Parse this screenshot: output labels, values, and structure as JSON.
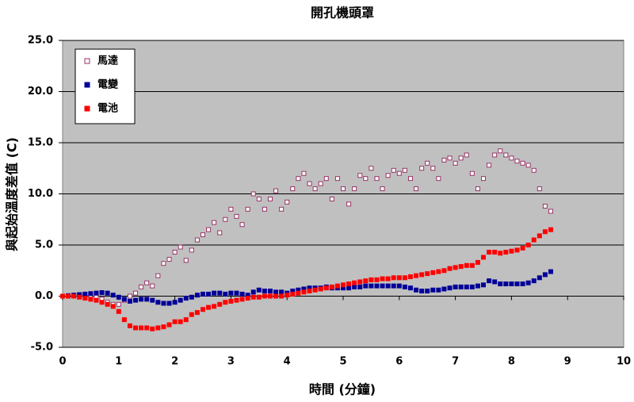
{
  "chart_data": {
    "type": "scatter",
    "title": "開孔機頭罩",
    "x_label": "時間 (分鐘)",
    "y_label": "與起始溫度差值 (C)",
    "xlim": [
      0,
      10
    ],
    "xticks": [
      0,
      1,
      2,
      3,
      4,
      5,
      6,
      7,
      8,
      9,
      10
    ],
    "ylim": [
      -5,
      25
    ],
    "yticks": [
      {
        "value": -5,
        "label": "-5.0"
      },
      {
        "value": 0,
        "label": "0.0"
      },
      {
        "value": 5,
        "label": "5.0"
      },
      {
        "value": 10,
        "label": "10.0"
      },
      {
        "value": 15,
        "label": "15.0"
      },
      {
        "value": 20,
        "label": "20.0"
      },
      {
        "value": 25,
        "label": "25.0"
      }
    ],
    "grid": true,
    "legend": "upper left",
    "x": [
      0,
      0.1,
      0.2,
      0.3,
      0.4,
      0.5,
      0.6,
      0.7,
      0.8,
      0.9,
      1.0,
      1.1,
      1.2,
      1.3,
      1.4,
      1.5,
      1.6,
      1.7,
      1.8,
      1.9,
      2.0,
      2.1,
      2.2,
      2.3,
      2.4,
      2.5,
      2.6,
      2.7,
      2.8,
      2.9,
      3.0,
      3.1,
      3.2,
      3.3,
      3.4,
      3.5,
      3.6,
      3.7,
      3.8,
      3.9,
      4.0,
      4.1,
      4.2,
      4.3,
      4.4,
      4.5,
      4.6,
      4.7,
      4.8,
      4.9,
      5.0,
      5.1,
      5.2,
      5.3,
      5.4,
      5.5,
      5.6,
      5.7,
      5.8,
      5.9,
      6.0,
      6.1,
      6.2,
      6.3,
      6.4,
      6.5,
      6.6,
      6.7,
      6.8,
      6.9,
      7.0,
      7.1,
      7.2,
      7.3,
      7.4,
      7.5,
      7.6,
      7.7,
      7.8,
      7.9,
      8.0,
      8.1,
      8.2,
      8.3,
      8.4,
      8.5,
      8.6,
      8.7
    ],
    "series": [
      {
        "name": "馬達",
        "color": "#993366",
        "marker": "hollow",
        "values": [
          0,
          0,
          0,
          0,
          0,
          0,
          -0.1,
          -0.3,
          -0.6,
          -0.8,
          -0.8,
          -0.4,
          0,
          0.3,
          0.9,
          1.3,
          1.0,
          2.0,
          3.2,
          3.6,
          4.3,
          4.8,
          3.5,
          4.5,
          5.5,
          6.0,
          6.5,
          7.2,
          6.2,
          7.5,
          8.5,
          7.8,
          7.0,
          8.5,
          10.0,
          9.5,
          8.5,
          9.5,
          10.3,
          8.5,
          9.2,
          10.5,
          11.5,
          12.0,
          11.0,
          10.5,
          11.0,
          11.5,
          9.5,
          11.5,
          10.5,
          9.0,
          10.5,
          11.8,
          11.5,
          12.5,
          11.5,
          10.5,
          11.8,
          12.3,
          12.0,
          12.3,
          11.5,
          10.5,
          12.5,
          13.0,
          12.5,
          11.5,
          13.3,
          13.5,
          13.0,
          13.5,
          13.8,
          12.0,
          10.5,
          11.5,
          12.8,
          13.8,
          14.2,
          13.8,
          13.5,
          13.2,
          13.0,
          12.8,
          12.3,
          10.5,
          8.8,
          8.3
        ]
      },
      {
        "name": "電變",
        "color": "#000099",
        "marker": "filled",
        "values": [
          0,
          0.05,
          0.1,
          0.15,
          0.2,
          0.25,
          0.3,
          0.35,
          0.3,
          0.1,
          -0.1,
          -0.3,
          -0.5,
          -0.4,
          -0.3,
          -0.3,
          -0.4,
          -0.6,
          -0.7,
          -0.7,
          -0.6,
          -0.4,
          -0.2,
          -0.1,
          0.1,
          0.2,
          0.2,
          0.3,
          0.3,
          0.2,
          0.3,
          0.3,
          0.2,
          0.1,
          0.4,
          0.6,
          0.5,
          0.5,
          0.4,
          0.4,
          0.3,
          0.5,
          0.6,
          0.7,
          0.8,
          0.8,
          0.8,
          0.9,
          0.8,
          0.8,
          0.8,
          0.8,
          0.9,
          0.9,
          1.0,
          1.0,
          1.0,
          1.0,
          1.0,
          1.0,
          1.0,
          0.9,
          0.8,
          0.6,
          0.5,
          0.5,
          0.6,
          0.6,
          0.7,
          0.8,
          0.9,
          0.9,
          0.9,
          0.9,
          1.0,
          1.1,
          1.5,
          1.4,
          1.2,
          1.2,
          1.2,
          1.2,
          1.2,
          1.3,
          1.5,
          1.8,
          2.1,
          2.4
        ]
      },
      {
        "name": "電池",
        "color": "#ff0000",
        "marker": "filled",
        "values": [
          0,
          0,
          0,
          -0.1,
          -0.2,
          -0.3,
          -0.4,
          -0.6,
          -0.8,
          -1.0,
          -1.5,
          -2.3,
          -2.9,
          -3.1,
          -3.1,
          -3.1,
          -3.2,
          -3.1,
          -3.0,
          -2.8,
          -2.5,
          -2.5,
          -2.3,
          -1.8,
          -1.6,
          -1.3,
          -1.1,
          -1.0,
          -0.8,
          -0.6,
          -0.5,
          -0.4,
          -0.3,
          -0.2,
          -0.1,
          -0.1,
          0,
          0,
          0,
          0,
          0.1,
          0.2,
          0.3,
          0.4,
          0.5,
          0.6,
          0.7,
          0.8,
          0.9,
          1.0,
          1.1,
          1.2,
          1.3,
          1.4,
          1.5,
          1.6,
          1.6,
          1.7,
          1.7,
          1.8,
          1.8,
          1.8,
          1.9,
          2.0,
          2.1,
          2.2,
          2.3,
          2.4,
          2.5,
          2.7,
          2.8,
          2.9,
          3.0,
          3.0,
          3.3,
          3.8,
          4.3,
          4.3,
          4.2,
          4.3,
          4.4,
          4.5,
          4.7,
          5.0,
          5.5,
          5.9,
          6.3,
          6.5
        ]
      }
    ]
  }
}
